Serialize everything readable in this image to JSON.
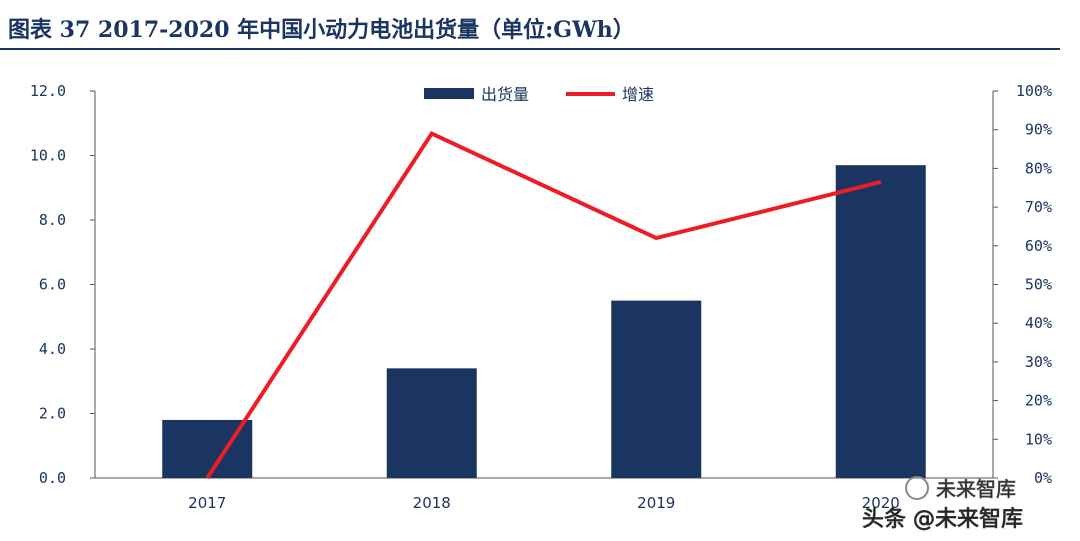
{
  "title": "图表 37   2017-2020 年中国小动力电池出货量（单位:GWh）",
  "watermark": {
    "text1": "未来智库",
    "text2": "头条 @未来智库"
  },
  "chart_data": {
    "type": "bar+line",
    "categories": [
      "2017",
      "2018",
      "2019",
      "2020"
    ],
    "series": [
      {
        "name": "出货量",
        "type": "bar",
        "axis": "left",
        "values": [
          1.8,
          3.4,
          5.5,
          9.7
        ],
        "color": "#1a3561"
      },
      {
        "name": "增速",
        "type": "line",
        "axis": "right",
        "values": [
          0,
          89,
          62,
          76.5
        ],
        "color": "#ee1c25"
      }
    ],
    "y_left": {
      "ylim": [
        0,
        12
      ],
      "ticks": [
        "0.0",
        "2.0",
        "4.0",
        "6.0",
        "8.0",
        "10.0",
        "12.0"
      ]
    },
    "y_right": {
      "ylim": [
        0,
        100
      ],
      "ticks": [
        "0%",
        "10%",
        "20%",
        "30%",
        "40%",
        "50%",
        "60%",
        "70%",
        "80%",
        "90%",
        "100%"
      ]
    },
    "legend_position": "top-center",
    "grid": false
  }
}
